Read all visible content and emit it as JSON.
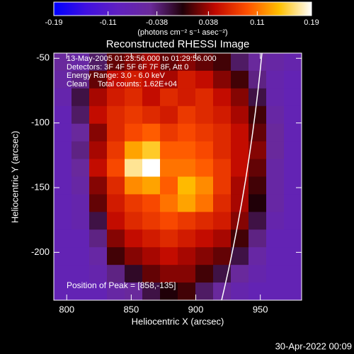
{
  "chart_data": {
    "type": "heatmap",
    "title": "Reconstructed RHESSI Image",
    "colorbar_label": "(photons cm⁻² s⁻¹ asec⁻²)",
    "zlim": [
      -0.19,
      0.19
    ],
    "zticks": [
      -0.19,
      -0.11,
      -0.038,
      0.038,
      0.11,
      0.19
    ],
    "colormap": [
      "#0000ff",
      "#4010e0",
      "#6020c0",
      "#6a2a9a",
      "#200008",
      "#c00800",
      "#ff5000",
      "#ffc000",
      "#ffffff"
    ],
    "xlabel": "Heliocentric X (arcsec)",
    "ylabel": "Heliocentric Y (arcsec)",
    "xlim": [
      790,
      982
    ],
    "ylim": [
      -237,
      -46
    ],
    "xticks": [
      800,
      850,
      900,
      950
    ],
    "yticks": [
      -50,
      -100,
      -150,
      -200
    ],
    "annotations": [
      "13-May-2005 01:23:56.000 to 01:29:56.000",
      "Detectors: 3F 4F 5F 6F 7F 8F, Att 0",
      "Energy Range: 3.0 - 6.0 keV",
      "Clean     Total counts: 1.62E+04"
    ],
    "peak_label": "Position of Peak = [858,-135]",
    "timestamp": "30-Apr-2022 00:09",
    "z": [
      [
        -0.05,
        -0.06,
        -0.03,
        0.02,
        0.03,
        0.04,
        0.02,
        0.03,
        0.02,
        0.01,
        -0.03,
        -0.05,
        -0.06,
        -0.07
      ],
      [
        -0.06,
        -0.04,
        0.02,
        0.05,
        0.06,
        0.05,
        0.04,
        0.06,
        0.05,
        0.03,
        0.01,
        -0.04,
        -0.07,
        -0.08
      ],
      [
        -0.07,
        -0.02,
        0.04,
        0.06,
        0.07,
        0.05,
        0.07,
        0.06,
        0.07,
        0.05,
        0.03,
        -0.02,
        -0.07,
        -0.08
      ],
      [
        -0.08,
        -0.03,
        0.05,
        0.07,
        0.08,
        0.07,
        0.06,
        0.08,
        0.07,
        0.06,
        0.04,
        0.01,
        -0.06,
        -0.08
      ],
      [
        -0.08,
        -0.05,
        0.03,
        0.07,
        0.09,
        0.1,
        0.08,
        0.09,
        0.08,
        0.07,
        0.05,
        0.02,
        -0.05,
        -0.08
      ],
      [
        -0.08,
        -0.04,
        0.04,
        0.08,
        0.13,
        0.15,
        0.1,
        0.1,
        0.09,
        0.07,
        0.05,
        0.03,
        -0.05,
        -0.08
      ],
      [
        -0.08,
        -0.05,
        0.05,
        0.09,
        0.17,
        0.19,
        0.11,
        0.11,
        0.1,
        0.08,
        0.05,
        0.02,
        -0.06,
        -0.08
      ],
      [
        -0.08,
        -0.06,
        0.03,
        0.07,
        0.12,
        0.13,
        0.1,
        0.14,
        0.12,
        0.08,
        0.04,
        0.01,
        -0.06,
        -0.08
      ],
      [
        -0.08,
        -0.07,
        0.02,
        0.06,
        0.08,
        0.09,
        0.11,
        0.13,
        0.11,
        0.07,
        0.04,
        0.0,
        -0.06,
        -0.08
      ],
      [
        -0.08,
        -0.07,
        -0.02,
        0.05,
        0.07,
        0.08,
        0.09,
        0.08,
        0.07,
        0.06,
        0.03,
        -0.02,
        -0.07,
        -0.08
      ],
      [
        -0.08,
        -0.08,
        -0.04,
        0.03,
        0.05,
        0.06,
        0.07,
        0.06,
        0.05,
        0.04,
        0.01,
        -0.04,
        -0.08,
        -0.08
      ],
      [
        -0.08,
        -0.08,
        -0.06,
        0.01,
        0.03,
        0.04,
        0.05,
        0.04,
        0.03,
        0.02,
        -0.02,
        -0.06,
        -0.08,
        -0.08
      ],
      [
        -0.08,
        -0.08,
        -0.07,
        -0.04,
        -0.01,
        0.02,
        0.03,
        0.03,
        0.01,
        -0.02,
        -0.05,
        -0.07,
        -0.08,
        -0.08
      ],
      [
        -0.08,
        -0.08,
        -0.08,
        -0.06,
        -0.05,
        -0.02,
        0.0,
        0.01,
        -0.03,
        -0.05,
        -0.07,
        -0.08,
        -0.08,
        -0.08
      ]
    ]
  }
}
